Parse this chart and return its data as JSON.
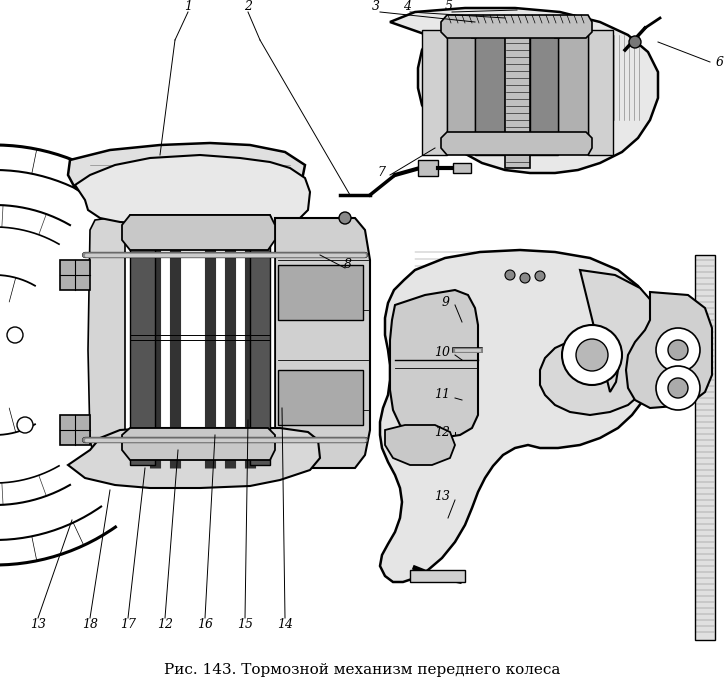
{
  "caption": "Рис. 143. Тормозной механизм переднего колеса",
  "caption_fontsize": 11,
  "background_color": "#ffffff",
  "fig_width": 7.25,
  "fig_height": 6.92,
  "dpi": 100,
  "text_color": "#000000",
  "image_data": ""
}
